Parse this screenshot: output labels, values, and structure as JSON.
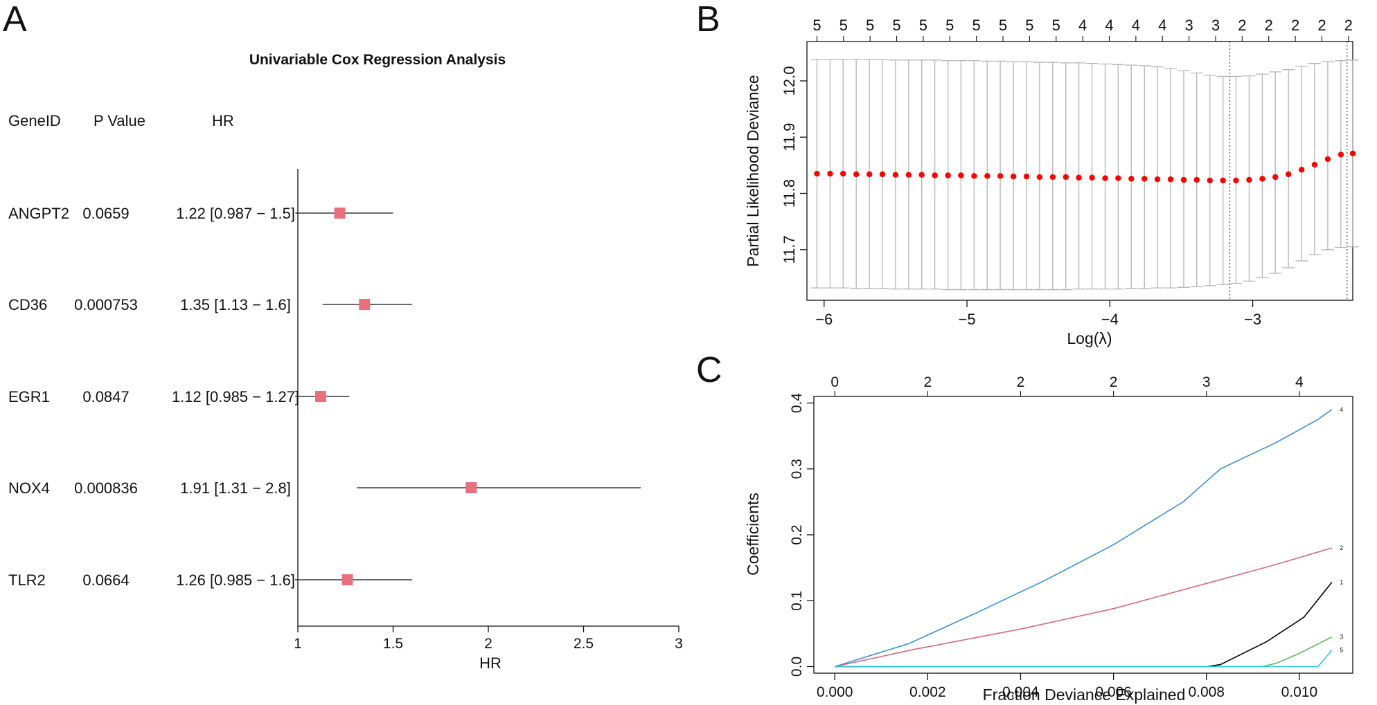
{
  "panels": {
    "A": "A",
    "B": "B",
    "C": "C"
  },
  "chart_data": [
    {
      "id": "forest",
      "type": "forest",
      "title": "Univariable Cox Regression Analysis",
      "columns": {
        "gene": "GeneID",
        "p": "P Value",
        "hr": "HR"
      },
      "xlabel": "HR",
      "xlim": [
        1,
        3
      ],
      "xticks": [
        1,
        1.5,
        2,
        2.5,
        3
      ],
      "xtick_labels": [
        "1",
        "1.5",
        "2",
        "2.5",
        "3"
      ],
      "marker_color": "#e8707d",
      "rows": [
        {
          "gene": "ANGPT2",
          "p": "0.0659",
          "hr_text": "1.22 [0.987 − 1.5]",
          "hr": 1.22,
          "lo": 0.987,
          "hi": 1.5
        },
        {
          "gene": "CD36",
          "p": "0.000753",
          "hr_text": "1.35 [1.13 − 1.6]",
          "hr": 1.35,
          "lo": 1.13,
          "hi": 1.6
        },
        {
          "gene": "EGR1",
          "p": "0.0847",
          "hr_text": "1.12 [0.985 − 1.27]",
          "hr": 1.12,
          "lo": 0.985,
          "hi": 1.27
        },
        {
          "gene": "NOX4",
          "p": "0.000836",
          "hr_text": "1.91 [1.31 − 2.8]",
          "hr": 1.91,
          "lo": 1.31,
          "hi": 2.8
        },
        {
          "gene": "TLR2",
          "p": "0.0664",
          "hr_text": "1.26 [0.985 − 1.6]",
          "hr": 1.26,
          "lo": 0.985,
          "hi": 1.6
        }
      ]
    },
    {
      "id": "cv",
      "type": "scatter",
      "xlabel": "Log(λ)",
      "ylabel": "Partial Likelihood Deviance",
      "xlim": [
        -6.12,
        -2.3
      ],
      "ylim": [
        11.61,
        12.07
      ],
      "xticks": [
        -6,
        -5,
        -4,
        -3
      ],
      "xtick_labels": [
        "−6",
        "−5",
        "−4",
        "−3"
      ],
      "yticks": [
        11.7,
        11.8,
        11.9,
        12.0
      ],
      "ytick_labels": [
        "11.7",
        "11.8",
        "11.9",
        "12.0"
      ],
      "top_labels": [
        "5",
        "5",
        "5",
        "5",
        "5",
        "5",
        "5",
        "5",
        "5",
        "5",
        "4",
        "4",
        "4",
        "4",
        "3",
        "3",
        "2",
        "2",
        "2",
        "2",
        "2"
      ],
      "top_label_range": [
        -6.05,
        -2.33
      ],
      "lambda_min": -3.16,
      "lambda_1se": -2.34,
      "point_color": "#ff0000",
      "errorbar_color": "#b4b4b4",
      "log_lambda": [
        -6.05,
        -5.958,
        -5.867,
        -5.775,
        -5.683,
        -5.592,
        -5.5,
        -5.408,
        -5.317,
        -5.225,
        -5.133,
        -5.042,
        -4.95,
        -4.858,
        -4.767,
        -4.675,
        -4.583,
        -4.492,
        -4.4,
        -4.308,
        -4.217,
        -4.125,
        -4.033,
        -3.942,
        -3.85,
        -3.758,
        -3.667,
        -3.575,
        -3.483,
        -3.392,
        -3.3,
        -3.208,
        -3.117,
        -3.025,
        -2.933,
        -2.842,
        -2.75,
        -2.658,
        -2.567,
        -2.475,
        -2.383,
        -2.3
      ],
      "deviance": [
        11.835,
        11.835,
        11.835,
        11.834,
        11.834,
        11.834,
        11.833,
        11.833,
        11.833,
        11.832,
        11.832,
        11.832,
        11.831,
        11.831,
        11.831,
        11.83,
        11.83,
        11.829,
        11.829,
        11.829,
        11.828,
        11.828,
        11.827,
        11.827,
        11.826,
        11.826,
        11.825,
        11.825,
        11.824,
        11.824,
        11.823,
        11.823,
        11.823,
        11.824,
        11.826,
        11.829,
        11.834,
        11.842,
        11.851,
        11.861,
        11.869,
        11.871
      ],
      "upper": [
        12.038,
        12.038,
        12.038,
        12.038,
        12.038,
        12.038,
        12.037,
        12.037,
        12.037,
        12.037,
        12.036,
        12.036,
        12.036,
        12.035,
        12.035,
        12.034,
        12.034,
        12.033,
        12.033,
        12.032,
        12.032,
        12.031,
        12.03,
        12.029,
        12.028,
        12.027,
        12.025,
        12.022,
        12.018,
        12.014,
        12.01,
        12.008,
        12.008,
        12.009,
        12.012,
        12.016,
        12.02,
        12.026,
        12.031,
        12.034,
        12.036,
        12.037
      ],
      "lower": [
        11.632,
        11.632,
        11.632,
        11.631,
        11.631,
        11.631,
        11.63,
        11.63,
        11.63,
        11.63,
        11.629,
        11.629,
        11.629,
        11.629,
        11.629,
        11.629,
        11.629,
        11.629,
        11.629,
        11.629,
        11.63,
        11.63,
        11.63,
        11.63,
        11.631,
        11.631,
        11.632,
        11.632,
        11.633,
        11.634,
        11.636,
        11.638,
        11.64,
        11.644,
        11.65,
        11.658,
        11.668,
        11.68,
        11.691,
        11.7,
        11.704,
        11.705
      ]
    },
    {
      "id": "coef",
      "type": "line",
      "xlabel": "Fraction Deviance Explained",
      "ylabel": "Coefficients",
      "xlim": [
        -0.00045,
        0.01115
      ],
      "ylim": [
        -0.01,
        0.41
      ],
      "xticks": [
        0,
        0.002,
        0.004,
        0.006,
        0.008,
        0.01
      ],
      "xtick_labels": [
        "0.000",
        "0.002",
        "0.004",
        "0.006",
        "0.008",
        "0.010"
      ],
      "yticks": [
        0,
        0.1,
        0.2,
        0.3,
        0.4
      ],
      "ytick_labels": [
        "0.0",
        "0.1",
        "0.2",
        "0.3",
        "0.4"
      ],
      "top_labels": [
        "0",
        "2",
        "2",
        "2",
        "3",
        "4"
      ],
      "top_label_positions": [
        0,
        0.002,
        0.004,
        0.006,
        0.008,
        0.01
      ],
      "series": [
        {
          "name": "4",
          "color": "#3b8ed4",
          "x": [
            0,
            0.0016,
            0.003,
            0.0045,
            0.006,
            0.0075,
            0.0083,
            0.0095,
            0.0104,
            0.0107
          ],
          "y": [
            0,
            0.035,
            0.08,
            0.13,
            0.185,
            0.25,
            0.3,
            0.34,
            0.375,
            0.39
          ]
        },
        {
          "name": "2",
          "color": "#d46a7a",
          "x": [
            0,
            0.0017,
            0.004,
            0.006,
            0.0082,
            0.0095,
            0.0107
          ],
          "y": [
            0,
            0.026,
            0.057,
            0.088,
            0.13,
            0.155,
            0.18
          ]
        },
        {
          "name": "1",
          "color": "#000000",
          "x": [
            0,
            0.008,
            0.0083,
            0.0093,
            0.0101,
            0.0107
          ],
          "y": [
            0,
            0,
            0.003,
            0.038,
            0.075,
            0.128
          ]
        },
        {
          "name": "3",
          "color": "#5cb85c",
          "x": [
            0,
            0.0092,
            0.0095,
            0.01,
            0.0107
          ],
          "y": [
            0,
            0,
            0.005,
            0.02,
            0.045
          ]
        },
        {
          "name": "5",
          "color": "#2ec4d4",
          "x": [
            0,
            0.0104,
            0.0105,
            0.0107
          ],
          "y": [
            0,
            0,
            0.008,
            0.025
          ]
        }
      ]
    }
  ]
}
